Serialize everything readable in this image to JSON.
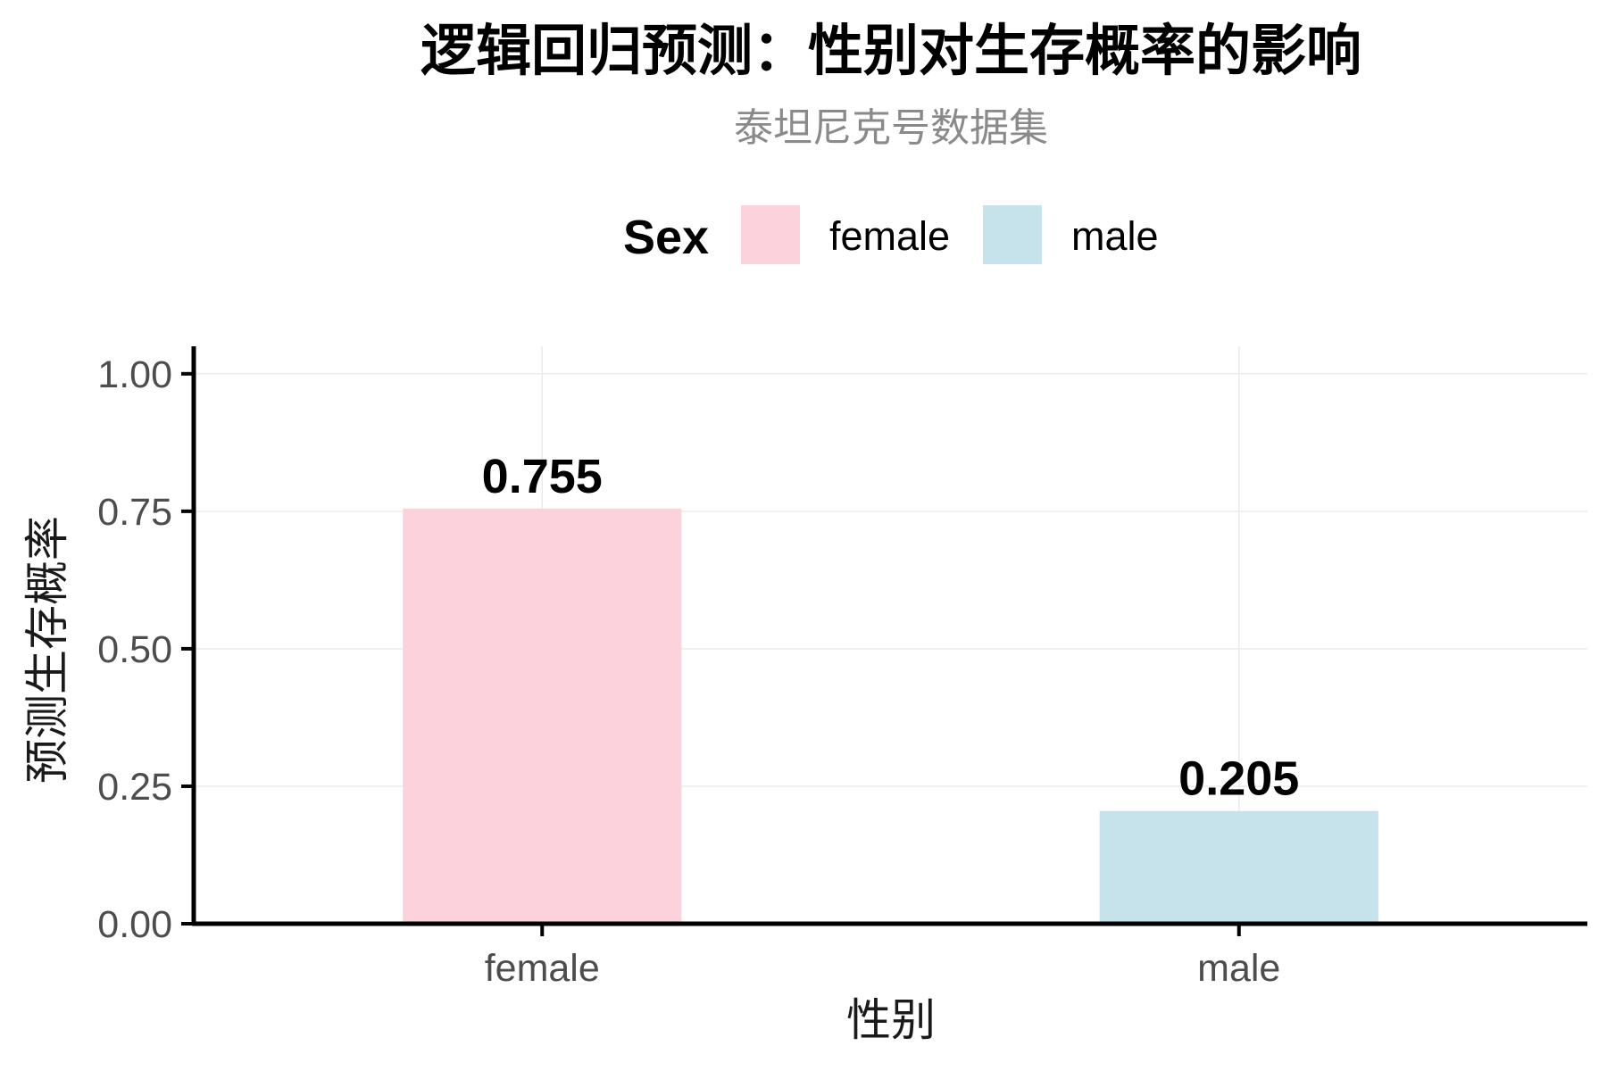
{
  "chart_data": {
    "type": "bar",
    "title": "逻辑回归预测：性别对生存概率的影响",
    "subtitle": "泰坦尼克号数据集",
    "xlabel": "性别",
    "ylabel": "预测生存概率",
    "categories": [
      "female",
      "male"
    ],
    "values": [
      0.755,
      0.205
    ],
    "value_labels": [
      "0.755",
      "0.205"
    ],
    "colors": [
      "#fcd3dc",
      "#c6e3ec"
    ],
    "ylim": [
      0,
      1.05
    ],
    "yticks": [
      0,
      0.25,
      0.5,
      0.75,
      1.0
    ],
    "ytick_labels": [
      "0.00",
      "0.25",
      "0.50",
      "0.75",
      "1.00"
    ],
    "grid": true,
    "legend": {
      "title": "Sex",
      "position": "top",
      "items": [
        {
          "label": "female",
          "color": "#fcd3dc"
        },
        {
          "label": "male",
          "color": "#c6e3ec"
        }
      ]
    }
  }
}
